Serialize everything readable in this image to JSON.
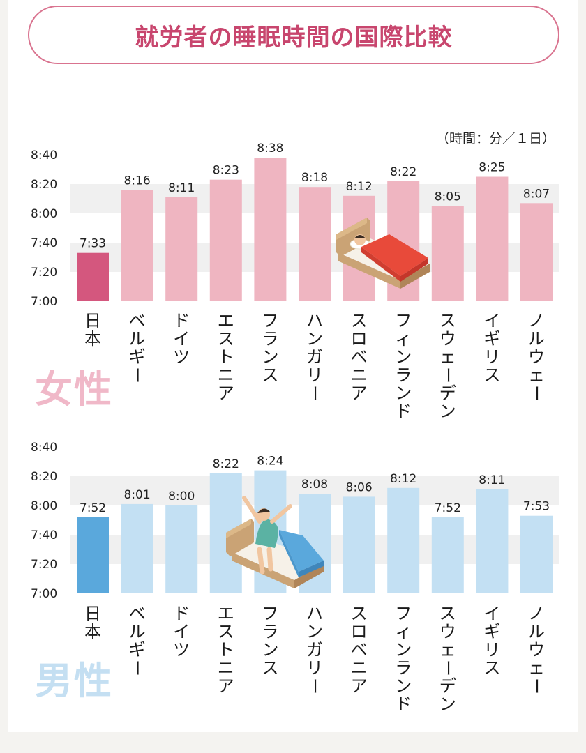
{
  "title": "就労者の睡眠時間の国際比較",
  "unit_note": "（時間：分／１日）",
  "colors": {
    "title": "#c8466e",
    "title_border": "#d9738f",
    "female_highlight": "#d4577e",
    "female_bar": "#efb5c1",
    "female_label": "#f0b8c8",
    "male_highlight": "#5aa8dc",
    "male_bar": "#c3e0f3",
    "male_label": "#c4dff2",
    "band": "#f0f0f0"
  },
  "chart_data": [
    {
      "type": "bar",
      "group_label": "女性",
      "categories": [
        "日本",
        "ベルギー",
        "ドイツ",
        "エストニア",
        "フランス",
        "ハンガリー",
        "スロベニア",
        "フィンランド",
        "スウェーデン",
        "イギリス",
        "ノルウェー"
      ],
      "values": [
        "7:33",
        "8:16",
        "8:11",
        "8:23",
        "8:38",
        "8:18",
        "8:12",
        "8:22",
        "8:05",
        "8:25",
        "8:07"
      ],
      "yticks": [
        "7:00",
        "7:20",
        "7:40",
        "8:00",
        "8:20",
        "8:40"
      ],
      "ylim": [
        "7:00",
        "8:40"
      ],
      "highlight": "日本"
    },
    {
      "type": "bar",
      "group_label": "男性",
      "categories": [
        "日本",
        "ベルギー",
        "ドイツ",
        "エストニア",
        "フランス",
        "ハンガリー",
        "スロベニア",
        "フィンランド",
        "スウェーデン",
        "イギリス",
        "ノルウェー"
      ],
      "values": [
        "7:52",
        "8:01",
        "8:00",
        "8:22",
        "8:24",
        "8:08",
        "8:06",
        "8:12",
        "7:52",
        "8:11",
        "7:53"
      ],
      "yticks": [
        "7:00",
        "7:20",
        "7:40",
        "8:00",
        "8:20",
        "8:40"
      ],
      "ylim": [
        "7:00",
        "8:40"
      ],
      "highlight": "日本"
    }
  ],
  "illustrations": {
    "female": "sleeping-person-in-bed-icon",
    "male": "person-waking-up-stretching-icon"
  }
}
